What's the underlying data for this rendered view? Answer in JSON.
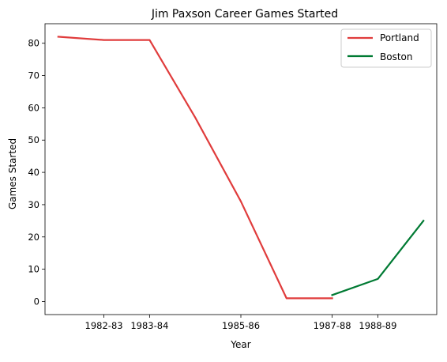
{
  "chart_data": {
    "type": "line",
    "title": "Jim Paxson Career Games Started",
    "xlabel": "Year",
    "ylabel": "Games Started",
    "x_tick_labels": [
      "1982-83",
      "1983-84",
      "1985-86",
      "1987-88",
      "1988-89"
    ],
    "y_ticks": [
      0,
      10,
      20,
      30,
      40,
      50,
      60,
      70,
      80
    ],
    "xlim": [
      -0.29,
      8.29
    ],
    "ylim": [
      -4.05,
      86.05
    ],
    "x_tick_positions": [
      1,
      2,
      4,
      6,
      7
    ],
    "grid": false,
    "legend_position": "top-right",
    "series": [
      {
        "name": "Portland",
        "color": "#e03c3c",
        "x": [
          0,
          1,
          2,
          3,
          4,
          5,
          6
        ],
        "y": [
          82,
          81,
          81,
          57,
          31,
          1,
          1
        ]
      },
      {
        "name": "Boston",
        "color": "#007a33",
        "x": [
          6,
          7,
          8
        ],
        "y": [
          2,
          7,
          25
        ]
      }
    ]
  }
}
